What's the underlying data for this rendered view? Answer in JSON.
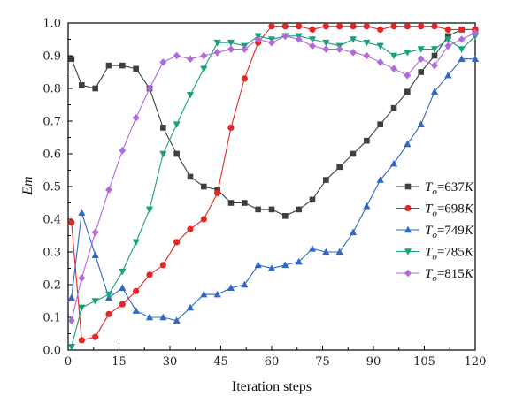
{
  "chart_data": {
    "type": "line",
    "xlabel": "Iteration steps",
    "ylabel": "Em",
    "xlim": [
      0,
      120
    ],
    "ylim": [
      0.0,
      1.0
    ],
    "xticks": [
      0,
      15,
      30,
      45,
      60,
      75,
      90,
      105,
      120
    ],
    "yticks": [
      0.0,
      0.1,
      0.2,
      0.3,
      0.4,
      0.5,
      0.6,
      0.7,
      0.8,
      0.9,
      1.0
    ],
    "xtick_labels": [
      "0",
      "15",
      "30",
      "45",
      "60",
      "75",
      "90",
      "105",
      "120"
    ],
    "ytick_labels": [
      "0.0",
      "0.1",
      "0.2",
      "0.3",
      "0.4",
      "0.5",
      "0.6",
      "0.7",
      "0.8",
      "0.9",
      "1.0"
    ],
    "grid": false,
    "legend_position": "right",
    "x": [
      1,
      4,
      8,
      12,
      16,
      20,
      24,
      28,
      32,
      36,
      40,
      44,
      48,
      52,
      56,
      60,
      64,
      68,
      72,
      76,
      80,
      84,
      88,
      92,
      96,
      100,
      104,
      108,
      112,
      116,
      120
    ],
    "series": [
      {
        "name": "T_o=637K",
        "legend_base": "T",
        "legend_sub": "o",
        "legend_rest": "=637",
        "legend_unit": "K",
        "color": "#3f3f3f",
        "marker": "square",
        "values": [
          0.89,
          0.81,
          0.8,
          0.87,
          0.87,
          0.86,
          0.8,
          0.68,
          0.6,
          0.53,
          0.5,
          0.49,
          0.45,
          0.45,
          0.43,
          0.43,
          0.41,
          0.43,
          0.46,
          0.52,
          0.56,
          0.6,
          0.64,
          0.69,
          0.74,
          0.79,
          0.85,
          0.9,
          0.96,
          0.98,
          0.98
        ]
      },
      {
        "name": "T_o=698K",
        "legend_base": "T",
        "legend_sub": "o",
        "legend_rest": "=698",
        "legend_unit": "K",
        "color": "#e02828",
        "marker": "circle",
        "values": [
          0.39,
          0.03,
          0.04,
          0.11,
          0.14,
          0.18,
          0.23,
          0.26,
          0.33,
          0.37,
          0.4,
          0.48,
          0.68,
          0.83,
          0.94,
          0.99,
          0.99,
          0.99,
          0.98,
          0.99,
          0.99,
          0.99,
          0.99,
          0.98,
          0.99,
          0.99,
          0.99,
          0.99,
          0.98,
          0.98,
          0.98
        ]
      },
      {
        "name": "T_o=749K",
        "legend_base": "T",
        "legend_sub": "o",
        "legend_rest": "=749",
        "legend_unit": "K",
        "color": "#2f68c4",
        "marker": "triangle-up",
        "values": [
          0.16,
          0.42,
          0.29,
          0.16,
          0.19,
          0.12,
          0.1,
          0.1,
          0.09,
          0.13,
          0.17,
          0.17,
          0.19,
          0.2,
          0.26,
          0.25,
          0.26,
          0.27,
          0.31,
          0.3,
          0.3,
          0.36,
          0.44,
          0.52,
          0.57,
          0.63,
          0.69,
          0.79,
          0.84,
          0.89,
          0.89
        ]
      },
      {
        "name": "T_o=785K",
        "legend_base": "T",
        "legend_sub": "o",
        "legend_rest": "=785",
        "legend_unit": "K",
        "color": "#1aa07a",
        "marker": "triangle-down",
        "values": [
          0.01,
          0.13,
          0.15,
          0.17,
          0.24,
          0.33,
          0.43,
          0.6,
          0.69,
          0.78,
          0.86,
          0.94,
          0.94,
          0.93,
          0.96,
          0.95,
          0.96,
          0.96,
          0.95,
          0.94,
          0.93,
          0.95,
          0.94,
          0.93,
          0.9,
          0.91,
          0.92,
          0.92,
          0.95,
          0.92,
          0.96
        ]
      },
      {
        "name": "T_o=815K",
        "legend_base": "T",
        "legend_sub": "o",
        "legend_rest": "=815",
        "legend_unit": "K",
        "color": "#b26ad9",
        "marker": "diamond",
        "values": [
          0.09,
          0.22,
          0.36,
          0.49,
          0.61,
          0.71,
          0.8,
          0.88,
          0.9,
          0.89,
          0.9,
          0.91,
          0.92,
          0.92,
          0.95,
          0.94,
          0.96,
          0.95,
          0.93,
          0.92,
          0.92,
          0.91,
          0.9,
          0.88,
          0.86,
          0.84,
          0.89,
          0.87,
          0.93,
          0.95,
          0.97
        ]
      }
    ]
  }
}
